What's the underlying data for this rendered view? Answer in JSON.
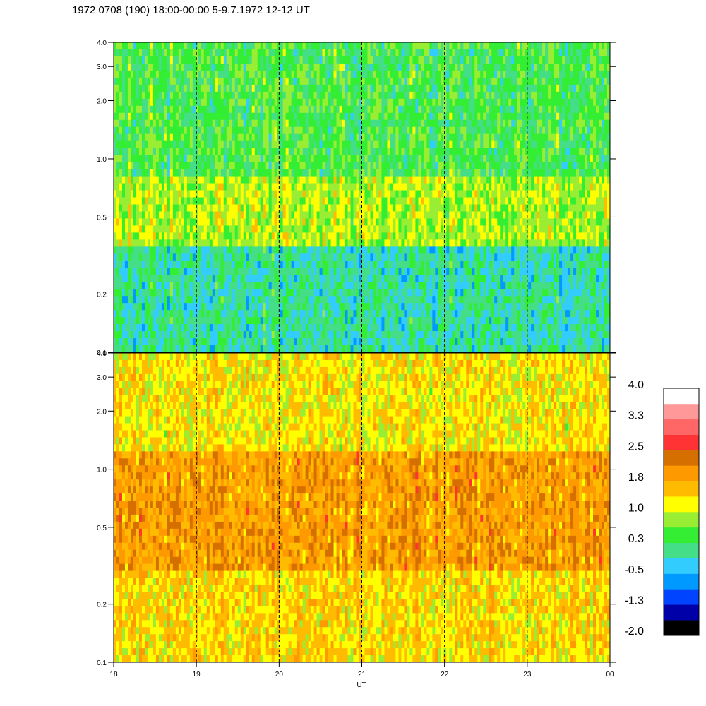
{
  "chart_data": {
    "type": "heatmap",
    "title": "1972 0708 (190) 18:00-00:00 5-9.7.1972  12-12 UT",
    "xlabel": "UT",
    "x_tick_labels": [
      "18",
      "19",
      "20",
      "21",
      "22",
      "23",
      "00"
    ],
    "x_range_hours": [
      18,
      24
    ],
    "y_scale": "log",
    "y_range": [
      0.1,
      4.0
    ],
    "y_tick_values": [
      0.1,
      0.2,
      0.5,
      1.0,
      2.0,
      3.0,
      4.0
    ],
    "y_tick_labels": [
      "0.1",
      "0.2",
      "0.5",
      "1.0",
      "2.0",
      "3.0",
      "4.0"
    ],
    "dashed_hour_lines": [
      19,
      20,
      21,
      22,
      23
    ],
    "panels": [
      {
        "name": "upper",
        "description_bands": [
          {
            "y_from": 0.1,
            "y_to": 0.35,
            "dominant_level": 0.0
          },
          {
            "y_from": 0.35,
            "y_to": 0.8,
            "dominant_level": 0.9
          },
          {
            "y_from": 0.8,
            "y_to": 4.0,
            "dominant_level": 0.4
          }
        ]
      },
      {
        "name": "lower",
        "description_bands": [
          {
            "y_from": 0.1,
            "y_to": 0.3,
            "dominant_level": 1.4
          },
          {
            "y_from": 0.3,
            "y_to": 1.2,
            "dominant_level": 1.9
          },
          {
            "y_from": 1.2,
            "y_to": 4.0,
            "dominant_level": 1.3
          }
        ]
      }
    ],
    "colorbar": {
      "labels": [
        "4.0",
        "3.3",
        "2.5",
        "1.8",
        "1.0",
        "0.3",
        "-0.5",
        "-1.3",
        "-2.0"
      ],
      "range": [
        -2.0,
        4.0
      ],
      "colors": [
        "#000000",
        "#0000a8",
        "#0044ff",
        "#0099ff",
        "#33ccff",
        "#44dd88",
        "#33ee33",
        "#99ee33",
        "#ffff00",
        "#ffbb00",
        "#ff9900",
        "#d57000",
        "#ff3333",
        "#ff6666",
        "#ff9999",
        "#ffffff"
      ]
    }
  }
}
